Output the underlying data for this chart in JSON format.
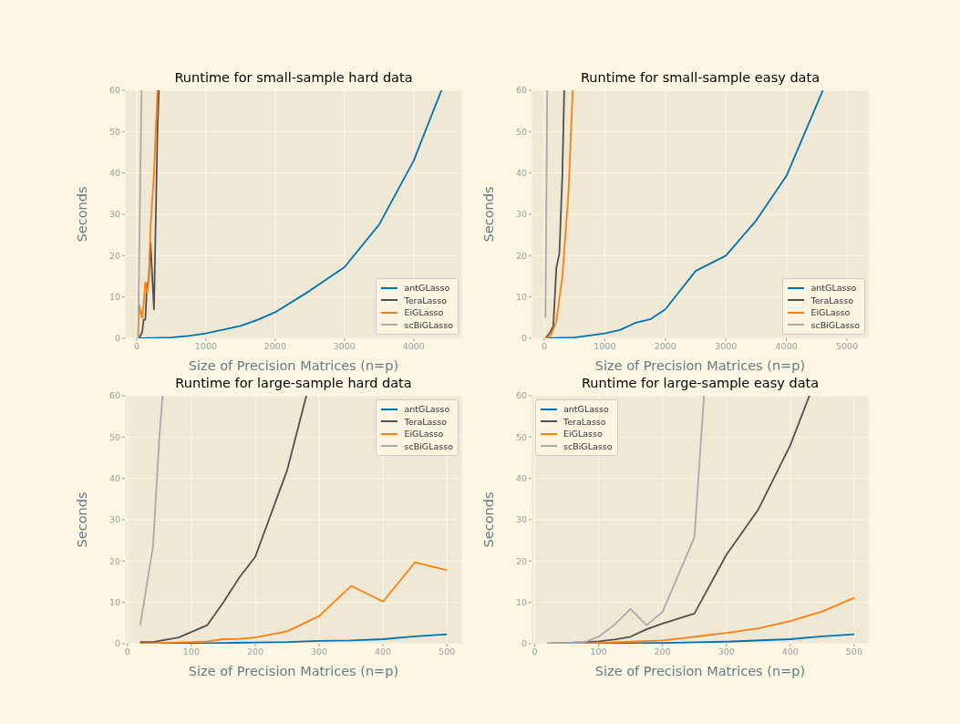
{
  "chart_data": [
    {
      "type": "line",
      "title": "Runtime for small-sample hard data",
      "xlabel": "Size of Precision Matrices (n=p)",
      "ylabel": "Seconds",
      "xlim": [
        -170,
        4700
      ],
      "xticks": [
        0,
        1000,
        2000,
        3000,
        4000
      ],
      "ylim": [
        0,
        60
      ],
      "yticks": [
        0,
        10,
        20,
        30,
        40,
        50,
        60
      ],
      "grid": true,
      "legend": "bottom right",
      "series": [
        {
          "name": "antGLasso",
          "color": "#0072b2",
          "x": [
            20,
            250,
            500,
            750,
            1000,
            1500,
            1750,
            2000,
            2500,
            3000,
            3500,
            4000,
            4400
          ],
          "values": [
            0,
            0.1,
            0.2,
            0.6,
            1.2,
            3,
            4.5,
            6.3,
            11.5,
            17.2,
            27.5,
            43,
            60
          ]
        },
        {
          "name": "TeraLasso",
          "color": "#505050",
          "x": [
            20,
            50,
            80,
            100,
            125,
            150,
            175,
            200,
            250,
            300,
            320
          ],
          "values": [
            0,
            0.5,
            1.5,
            4.5,
            4.5,
            13,
            14,
            23,
            7,
            50,
            60
          ]
        },
        {
          "name": "EiGLasso",
          "color": "#ff7f0e",
          "x": [
            20,
            40,
            60,
            80,
            100,
            125,
            150,
            175,
            200,
            250,
            300
          ],
          "values": [
            0.5,
            8,
            6,
            5,
            8,
            13.5,
            11,
            14,
            27,
            40,
            60
          ]
        },
        {
          "name": "scBiGLasso",
          "color": "#aaaaaa",
          "x": [
            20,
            50,
            70
          ],
          "values": [
            0,
            35,
            60
          ]
        }
      ]
    },
    {
      "type": "line",
      "title": "Runtime for small-sample easy data",
      "xlabel": "Size of Precision Matrices (n=p)",
      "ylabel": "Seconds",
      "xlim": [
        -210,
        5360
      ],
      "xticks": [
        0,
        1000,
        2000,
        3000,
        4000,
        5000
      ],
      "ylim": [
        0,
        60
      ],
      "yticks": [
        0,
        10,
        20,
        30,
        40,
        50,
        60
      ],
      "grid": true,
      "legend": "bottom right",
      "series": [
        {
          "name": "antGLasso",
          "color": "#0072b2",
          "x": [
            50,
            500,
            1000,
            1250,
            1500,
            1750,
            2000,
            2500,
            3000,
            3500,
            4000,
            4500,
            4600
          ],
          "values": [
            0,
            0.2,
            1.2,
            2,
            3.7,
            4.6,
            7,
            16.3,
            20,
            28.5,
            39.3,
            56.5,
            60
          ]
        },
        {
          "name": "TeraLasso",
          "color": "#505050",
          "x": [
            20,
            100,
            150,
            200,
            250,
            300,
            330
          ],
          "values": [
            0,
            1.5,
            3,
            17,
            20.5,
            40,
            60
          ]
        },
        {
          "name": "EiGLasso",
          "color": "#ff7f0e",
          "x": [
            20,
            100,
            200,
            300,
            400,
            470
          ],
          "values": [
            0,
            0.5,
            4,
            15,
            35,
            60
          ]
        },
        {
          "name": "scBiGLasso",
          "color": "#aaaaaa",
          "x": [
            20,
            50
          ],
          "values": [
            5,
            60
          ]
        }
      ]
    },
    {
      "type": "line",
      "title": "Runtime for large-sample hard data",
      "xlabel": "Size of Precision Matrices (n=p)",
      "ylabel": "Seconds",
      "xlim": [
        -4,
        524
      ],
      "xticks": [
        0,
        100,
        200,
        300,
        400,
        500
      ],
      "ylim": [
        0,
        60
      ],
      "yticks": [
        0,
        10,
        20,
        30,
        40,
        50,
        60
      ],
      "grid": true,
      "legend": "top right",
      "series": [
        {
          "name": "antGLasso",
          "color": "#0072b2",
          "x": [
            20,
            50,
            100,
            150,
            200,
            250,
            300,
            350,
            400,
            450,
            500
          ],
          "values": [
            0,
            0.1,
            0.1,
            0.2,
            0.3,
            0.4,
            0.7,
            0.8,
            1.1,
            1.8,
            2.3
          ]
        },
        {
          "name": "TeraLasso",
          "color": "#505050",
          "x": [
            20,
            40,
            80,
            125,
            150,
            175,
            200,
            250,
            280
          ],
          "values": [
            0.4,
            0.4,
            1.5,
            4.5,
            10,
            16,
            21,
            42,
            60
          ]
        },
        {
          "name": "EiGLasso",
          "color": "#ff7f0e",
          "x": [
            20,
            50,
            100,
            125,
            150,
            175,
            200,
            250,
            300,
            350,
            400,
            450,
            500
          ],
          "values": [
            0.1,
            0.2,
            0.4,
            0.6,
            1.1,
            1.2,
            1.5,
            3,
            6.7,
            14,
            10.2,
            19.7,
            17.8
          ]
        },
        {
          "name": "scBiGLasso",
          "color": "#aaaaaa",
          "x": [
            20,
            40,
            50,
            55
          ],
          "values": [
            4.5,
            23.5,
            50,
            60
          ]
        }
      ]
    },
    {
      "type": "line",
      "title": "Runtime for large-sample easy data",
      "xlabel": "Size of Precision Matrices (n=p)",
      "ylabel": "Seconds",
      "xlim": [
        -5,
        523
      ],
      "xticks": [
        0,
        100,
        200,
        300,
        400,
        500
      ],
      "ylim": [
        0,
        60
      ],
      "yticks": [
        0,
        10,
        20,
        30,
        40,
        50,
        60
      ],
      "grid": true,
      "legend": "top left",
      "series": [
        {
          "name": "antGLasso",
          "color": "#0072b2",
          "x": [
            20,
            100,
            200,
            300,
            400,
            450,
            500
          ],
          "values": [
            0,
            0.1,
            0.2,
            0.5,
            1.1,
            1.8,
            2.3
          ]
        },
        {
          "name": "TeraLasso",
          "color": "#505050",
          "x": [
            20,
            50,
            80,
            100,
            125,
            150,
            175,
            200,
            250,
            300,
            350,
            400,
            430
          ],
          "values": [
            0.1,
            0.2,
            0.4,
            0.6,
            1,
            1.7,
            3.5,
            4.9,
            7.3,
            21.5,
            32.5,
            48,
            60
          ]
        },
        {
          "name": "EiGLasso",
          "color": "#ff7f0e",
          "x": [
            20,
            100,
            150,
            200,
            250,
            300,
            350,
            400,
            450,
            500
          ],
          "values": [
            0,
            0.2,
            0.5,
            0.8,
            1.7,
            2.6,
            3.7,
            5.5,
            7.8,
            11.1
          ]
        },
        {
          "name": "scBiGLasso",
          "color": "#aaaaaa",
          "x": [
            20,
            50,
            80,
            100,
            125,
            150,
            175,
            200,
            250,
            265
          ],
          "values": [
            0.1,
            0.2,
            0.5,
            1.7,
            4.6,
            8.4,
            4.5,
            7.7,
            25.8,
            60
          ]
        }
      ]
    }
  ]
}
